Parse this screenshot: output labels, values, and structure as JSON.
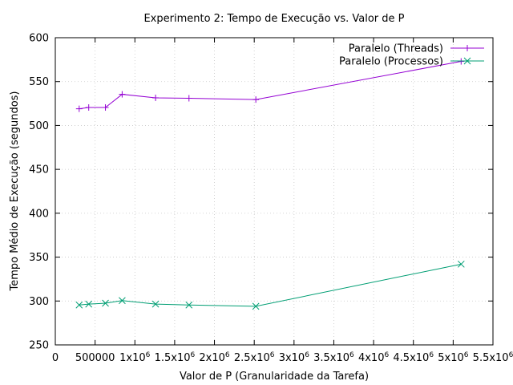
{
  "chart_data": {
    "type": "line",
    "title": "Experimento 2: Tempo de Execução vs. Valor de P",
    "xlabel": "Valor de P (Granularidade da Tarefa)",
    "ylabel": "Tempo Médio de Execução (segundos)",
    "xlim": [
      0,
      5500000
    ],
    "ylim": [
      250,
      600
    ],
    "grid": true,
    "legend_position": "top-right",
    "x_ticks": [
      {
        "value": 0,
        "label": "0"
      },
      {
        "value": 500000,
        "label": "500000"
      },
      {
        "value": 1000000,
        "label": "1x10",
        "exp": "6"
      },
      {
        "value": 1500000,
        "label": "1.5x10",
        "exp": "6"
      },
      {
        "value": 2000000,
        "label": "2x10",
        "exp": "6"
      },
      {
        "value": 2500000,
        "label": "2.5x10",
        "exp": "6"
      },
      {
        "value": 3000000,
        "label": "3x10",
        "exp": "6"
      },
      {
        "value": 3500000,
        "label": "3.5x10",
        "exp": "6"
      },
      {
        "value": 4000000,
        "label": "4x10",
        "exp": "6"
      },
      {
        "value": 4500000,
        "label": "4.5x10",
        "exp": "6"
      },
      {
        "value": 5000000,
        "label": "5x10",
        "exp": "6"
      },
      {
        "value": 5500000,
        "label": "5.5x10",
        "exp": "6"
      }
    ],
    "y_ticks": [
      250,
      300,
      350,
      400,
      450,
      500,
      550,
      600
    ],
    "series": [
      {
        "name": "Paralelo (Threads)",
        "color": "#9400d3",
        "marker": "plus",
        "points": [
          {
            "x": 300000,
            "y": 519
          },
          {
            "x": 420000,
            "y": 520.5
          },
          {
            "x": 630000,
            "y": 520.5
          },
          {
            "x": 840000,
            "y": 535.5
          },
          {
            "x": 1260000,
            "y": 531.5
          },
          {
            "x": 1680000,
            "y": 531
          },
          {
            "x": 2520000,
            "y": 529.5
          },
          {
            "x": 5100000,
            "y": 573
          }
        ]
      },
      {
        "name": "Paralelo (Processos)",
        "color": "#009e73",
        "marker": "cross",
        "points": [
          {
            "x": 300000,
            "y": 295.5
          },
          {
            "x": 420000,
            "y": 296.5
          },
          {
            "x": 630000,
            "y": 297.5
          },
          {
            "x": 840000,
            "y": 300.5
          },
          {
            "x": 1260000,
            "y": 296.5
          },
          {
            "x": 1680000,
            "y": 295.5
          },
          {
            "x": 2520000,
            "y": 294
          },
          {
            "x": 5100000,
            "y": 342
          }
        ]
      }
    ]
  }
}
